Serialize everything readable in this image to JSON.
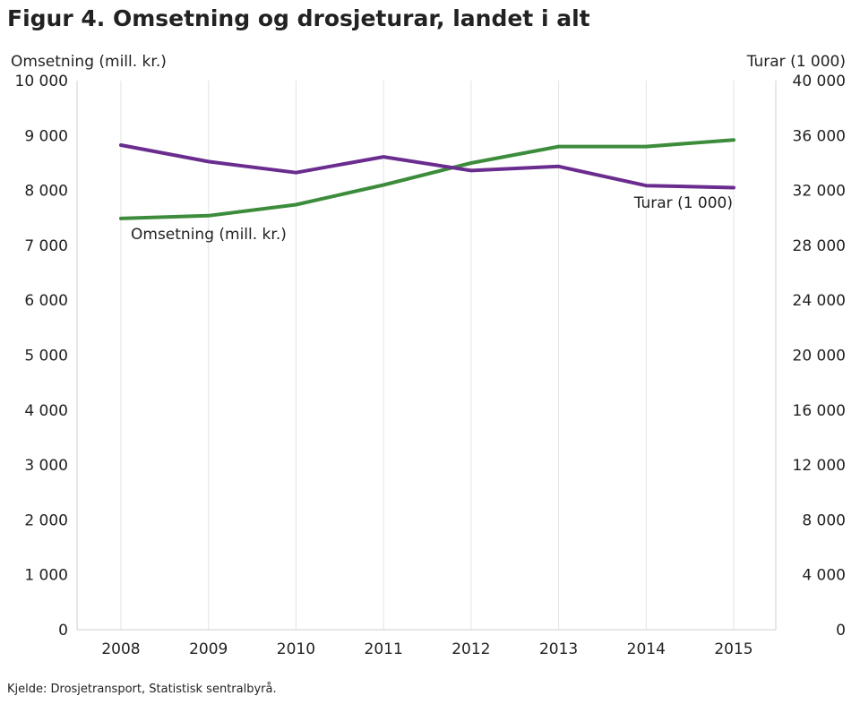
{
  "figure_title": "Figur 4. Omsetning og drosjeturar, landet i alt",
  "source": "Kjelde: Drosjetransport, Statistisk sentralbyrå.",
  "chart_data": {
    "type": "line",
    "title": "Figur 4. Omsetning og drosjeturar, landet i alt",
    "x": [
      "2008",
      "2009",
      "2010",
      "2011",
      "2012",
      "2013",
      "2014",
      "2015"
    ],
    "xlabel": "",
    "ylabel_left": "Omsetning (mill. kr.)",
    "ylabel_right": "Turar (1 000)",
    "ylim_left": [
      0,
      10000
    ],
    "ylim_right": [
      0,
      40000
    ],
    "yticks_left": [
      "0",
      "1 000",
      "2 000",
      "3 000",
      "4 000",
      "5 000",
      "6 000",
      "7 000",
      "8 000",
      "9 000",
      "10 000"
    ],
    "yticks_right": [
      "0",
      "4 000",
      "8 000",
      "12 000",
      "16 000",
      "20 000",
      "24 000",
      "28 000",
      "32 000",
      "36 000",
      "40 000"
    ],
    "grid": "vertical",
    "series": [
      {
        "name": "Omsetning (mill. kr.)",
        "axis": "left",
        "color": "#3c8c3c",
        "values": [
          7490,
          7540,
          7740,
          8100,
          8500,
          8800,
          8800,
          8920
        ]
      },
      {
        "name": "Turar (1 000)",
        "axis": "right",
        "color": "#6a2c8e",
        "values": [
          35300,
          34100,
          33300,
          34450,
          33450,
          33750,
          32350,
          32200
        ]
      }
    ]
  }
}
